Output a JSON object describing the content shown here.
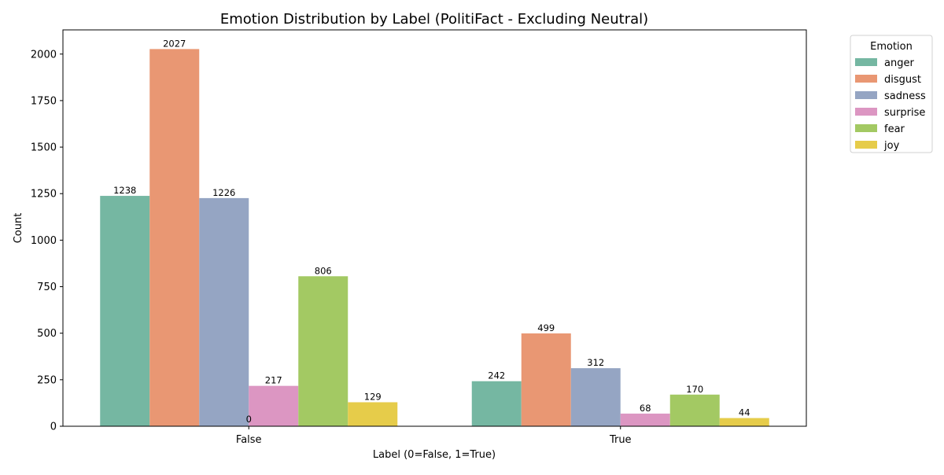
{
  "chart_data": {
    "type": "bar",
    "title": "Emotion Distribution by Label (PolitiFact - Excluding Neutral)",
    "xlabel": "Label (0=False, 1=True)",
    "ylabel": "Count",
    "categories": [
      "False",
      "True"
    ],
    "ylim": [
      0,
      2130
    ],
    "yticks": [
      0,
      250,
      500,
      750,
      1000,
      1250,
      1500,
      1750,
      2000
    ],
    "grid": false,
    "legend": {
      "title": "Emotion",
      "placement": "outside-top-right"
    },
    "series": [
      {
        "name": "anger",
        "color": "#75b7a2",
        "values": [
          1238,
          242
        ]
      },
      {
        "name": "disgust",
        "color": "#e99773",
        "values": [
          2027,
          499
        ]
      },
      {
        "name": "sadness",
        "color": "#95a5c3",
        "values": [
          1226,
          312
        ]
      },
      {
        "name": "surprise",
        "color": "#dc96c2",
        "values": [
          217,
          68
        ]
      },
      {
        "name": "fear",
        "color": "#a3c963",
        "values": [
          806,
          170
        ]
      },
      {
        "name": "joy",
        "color": "#e6cc4a",
        "values": [
          129,
          44
        ]
      }
    ],
    "extra_annotation": {
      "text": "0",
      "category": "False",
      "value": 0
    }
  }
}
